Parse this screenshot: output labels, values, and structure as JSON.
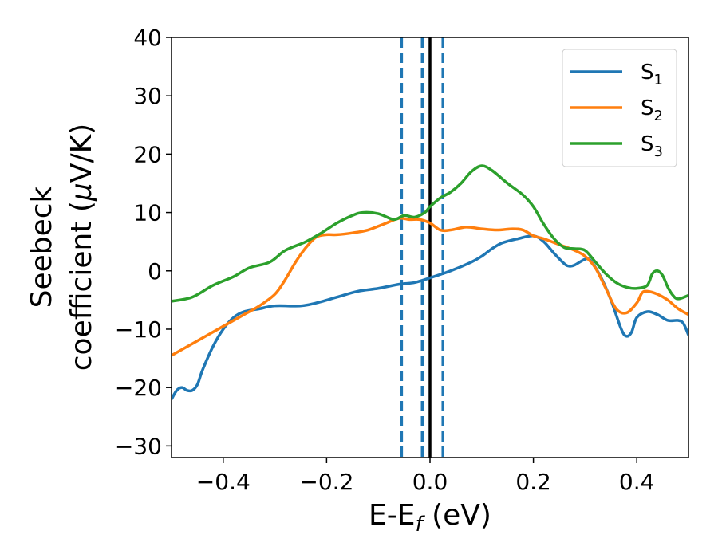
{
  "chart_data": {
    "type": "line",
    "xlabel": "E-E",
    "xlabel_sub": "f",
    "xlabel_suffix": " (eV)",
    "ylabel_line1": "Seebeck",
    "ylabel_line2": "coefficient  (",
    "ylabel_mu": "μ",
    "ylabel_line2_end": "V/K)",
    "xlim": [
      -0.5,
      0.5
    ],
    "ylim": [
      -32,
      40
    ],
    "x_ticks": [
      -0.4,
      -0.2,
      0.0,
      0.2,
      0.4
    ],
    "x_tick_labels": [
      "−0.4",
      "−0.2",
      "0.0",
      "0.2",
      "0.4"
    ],
    "y_ticks": [
      -30,
      -20,
      -10,
      0,
      10,
      20,
      30,
      40
    ],
    "y_tick_labels": [
      "−30",
      "−20",
      "−10",
      "0",
      "10",
      "20",
      "30",
      "40"
    ],
    "grid": false,
    "legend_position": "top-right",
    "vlines": [
      {
        "x": -0.055,
        "style": "dashed",
        "color": "#1f77b4"
      },
      {
        "x": -0.015,
        "style": "dashed",
        "color": "#1f77b4"
      },
      {
        "x": 0.0,
        "style": "solid",
        "color": "#000000"
      },
      {
        "x": 0.025,
        "style": "dashed",
        "color": "#1f77b4"
      }
    ],
    "series": [
      {
        "name": "S",
        "sub": "1",
        "color": "#1f77b4",
        "points": [
          [
            -0.5,
            -22
          ],
          [
            -0.49,
            -20.5
          ],
          [
            -0.48,
            -20
          ],
          [
            -0.47,
            -20.5
          ],
          [
            -0.46,
            -20.5
          ],
          [
            -0.45,
            -19.5
          ],
          [
            -0.44,
            -17
          ],
          [
            -0.42,
            -13
          ],
          [
            -0.4,
            -10
          ],
          [
            -0.38,
            -8
          ],
          [
            -0.36,
            -7
          ],
          [
            -0.33,
            -6.5
          ],
          [
            -0.3,
            -6
          ],
          [
            -0.25,
            -6
          ],
          [
            -0.22,
            -5.5
          ],
          [
            -0.18,
            -4.5
          ],
          [
            -0.14,
            -3.5
          ],
          [
            -0.1,
            -3
          ],
          [
            -0.06,
            -2.3
          ],
          [
            -0.03,
            -2
          ],
          [
            0.0,
            -1.2
          ],
          [
            0.04,
            0
          ],
          [
            0.08,
            1.5
          ],
          [
            0.1,
            2.5
          ],
          [
            0.12,
            3.8
          ],
          [
            0.14,
            4.8
          ],
          [
            0.17,
            5.5
          ],
          [
            0.2,
            6
          ],
          [
            0.22,
            5
          ],
          [
            0.24,
            3
          ],
          [
            0.26,
            1.2
          ],
          [
            0.27,
            0.8
          ],
          [
            0.28,
            1
          ],
          [
            0.3,
            2
          ],
          [
            0.31,
            1.8
          ],
          [
            0.33,
            -1
          ],
          [
            0.35,
            -5
          ],
          [
            0.37,
            -10
          ],
          [
            0.38,
            -11.2
          ],
          [
            0.39,
            -10.5
          ],
          [
            0.4,
            -8
          ],
          [
            0.42,
            -7
          ],
          [
            0.44,
            -7.5
          ],
          [
            0.46,
            -8.5
          ],
          [
            0.48,
            -8.5
          ],
          [
            0.49,
            -9
          ],
          [
            0.5,
            -11
          ]
        ]
      },
      {
        "name": "S",
        "sub": "2",
        "color": "#ff7f0e",
        "points": [
          [
            -0.5,
            -14.5
          ],
          [
            -0.45,
            -12
          ],
          [
            -0.4,
            -9.5
          ],
          [
            -0.36,
            -7.5
          ],
          [
            -0.33,
            -6
          ],
          [
            -0.3,
            -4
          ],
          [
            -0.28,
            -1.5
          ],
          [
            -0.26,
            1.5
          ],
          [
            -0.24,
            4
          ],
          [
            -0.22,
            5.8
          ],
          [
            -0.2,
            6.2
          ],
          [
            -0.18,
            6.2
          ],
          [
            -0.15,
            6.5
          ],
          [
            -0.12,
            7
          ],
          [
            -0.09,
            8
          ],
          [
            -0.06,
            9
          ],
          [
            -0.04,
            8.8
          ],
          [
            -0.02,
            8.8
          ],
          [
            0.0,
            8.2
          ],
          [
            0.02,
            7
          ],
          [
            0.04,
            7
          ],
          [
            0.07,
            7.5
          ],
          [
            0.1,
            7.2
          ],
          [
            0.13,
            7
          ],
          [
            0.16,
            7.2
          ],
          [
            0.18,
            7
          ],
          [
            0.2,
            6
          ],
          [
            0.22,
            5.5
          ],
          [
            0.25,
            4.5
          ],
          [
            0.28,
            3.5
          ],
          [
            0.3,
            2.5
          ],
          [
            0.32,
            0.5
          ],
          [
            0.34,
            -3
          ],
          [
            0.36,
            -6.5
          ],
          [
            0.38,
            -7.2
          ],
          [
            0.4,
            -5.5
          ],
          [
            0.41,
            -3.8
          ],
          [
            0.42,
            -3.5
          ],
          [
            0.44,
            -4
          ],
          [
            0.46,
            -5
          ],
          [
            0.48,
            -6.5
          ],
          [
            0.5,
            -7.5
          ]
        ]
      },
      {
        "name": "S",
        "sub": "3",
        "color": "#2ca02c",
        "points": [
          [
            -0.5,
            -5.2
          ],
          [
            -0.46,
            -4.5
          ],
          [
            -0.42,
            -2.5
          ],
          [
            -0.38,
            -1
          ],
          [
            -0.35,
            0.5
          ],
          [
            -0.31,
            1.5
          ],
          [
            -0.28,
            3.5
          ],
          [
            -0.24,
            5
          ],
          [
            -0.21,
            6.5
          ],
          [
            -0.18,
            8.2
          ],
          [
            -0.15,
            9.5
          ],
          [
            -0.13,
            10
          ],
          [
            -0.1,
            9.8
          ],
          [
            -0.07,
            8.8
          ],
          [
            -0.05,
            9.5
          ],
          [
            -0.03,
            9.2
          ],
          [
            -0.01,
            10
          ],
          [
            0.0,
            11
          ],
          [
            0.02,
            12.5
          ],
          [
            0.04,
            13.5
          ],
          [
            0.06,
            15
          ],
          [
            0.08,
            17
          ],
          [
            0.1,
            18
          ],
          [
            0.12,
            17.2
          ],
          [
            0.15,
            15
          ],
          [
            0.18,
            13
          ],
          [
            0.2,
            11
          ],
          [
            0.22,
            8
          ],
          [
            0.24,
            5.5
          ],
          [
            0.26,
            4
          ],
          [
            0.28,
            3.8
          ],
          [
            0.3,
            3.5
          ],
          [
            0.32,
            1.5
          ],
          [
            0.34,
            -0.5
          ],
          [
            0.36,
            -2
          ],
          [
            0.38,
            -2.8
          ],
          [
            0.4,
            -3
          ],
          [
            0.42,
            -2.5
          ],
          [
            0.43,
            -0.5
          ],
          [
            0.44,
            0
          ],
          [
            0.45,
            -0.8
          ],
          [
            0.46,
            -2.8
          ],
          [
            0.47,
            -4.2
          ],
          [
            0.48,
            -4.8
          ],
          [
            0.5,
            -4.2
          ]
        ]
      }
    ]
  }
}
